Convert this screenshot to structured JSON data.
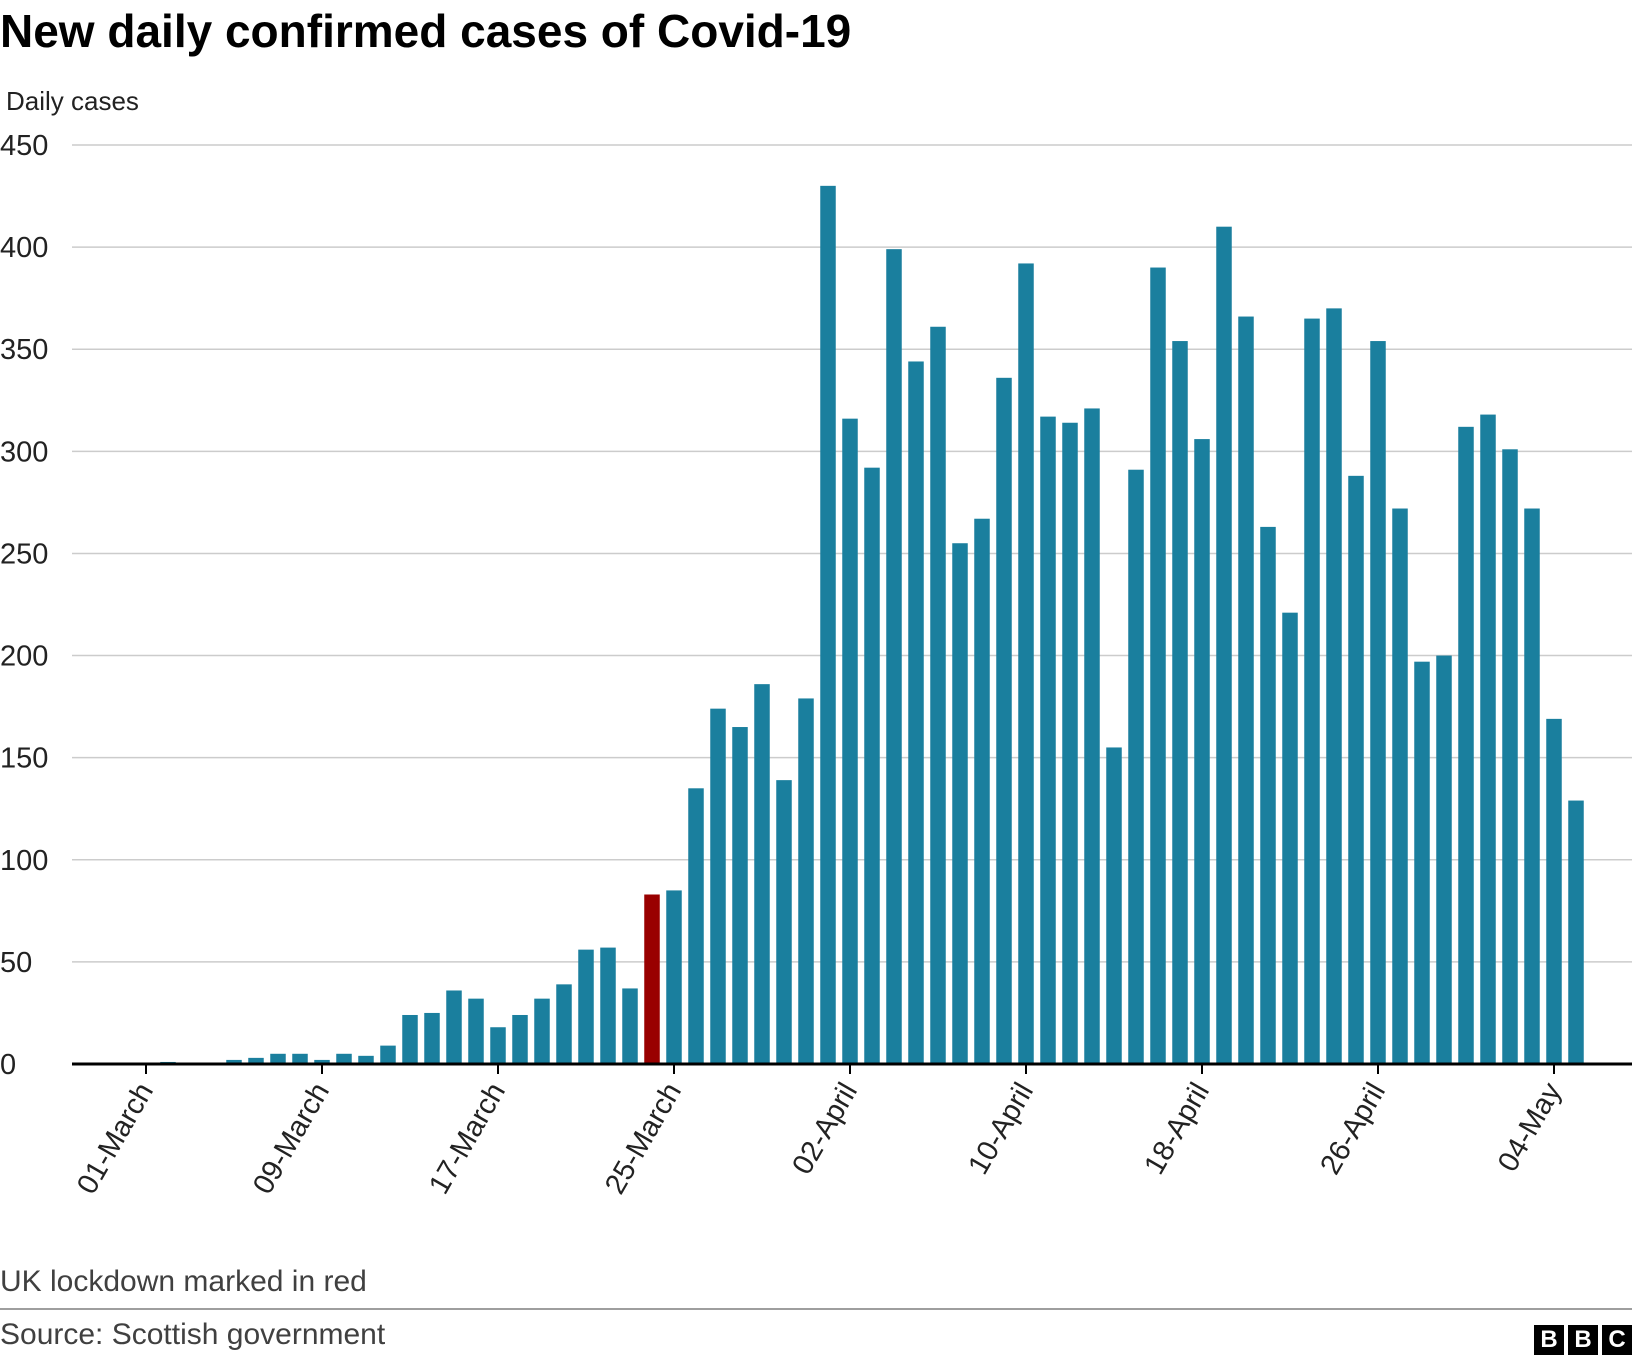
{
  "title": "New daily confirmed cases of Covid-19",
  "note": "UK lockdown marked in red",
  "source": "Source: Scottish government",
  "logo": {
    "letters": [
      "B",
      "B",
      "C"
    ]
  },
  "colors": {
    "bar": "#1a7f9e",
    "highlight": "#990000",
    "grid": "#cccccc",
    "axis": "#000000"
  },
  "chart_data": {
    "type": "bar",
    "title": "New daily confirmed cases of Covid-19",
    "ylabel": "Daily cases",
    "xlabel": "",
    "ylim": [
      0,
      450
    ],
    "yticks": [
      0,
      50,
      100,
      150,
      200,
      250,
      300,
      350,
      400,
      450
    ],
    "grid": true,
    "categories": [
      "01-March",
      "02-March",
      "03-March",
      "04-March",
      "05-March",
      "06-March",
      "07-March",
      "08-March",
      "09-March",
      "10-March",
      "11-March",
      "12-March",
      "13-March",
      "14-March",
      "15-March",
      "16-March",
      "17-March",
      "18-March",
      "19-March",
      "20-March",
      "21-March",
      "22-March",
      "23-March",
      "24-March",
      "25-March",
      "26-March",
      "27-March",
      "28-March",
      "29-March",
      "30-March",
      "31-March",
      "01-April",
      "02-April",
      "03-April",
      "04-April",
      "05-April",
      "06-April",
      "07-April",
      "08-April",
      "09-April",
      "10-April",
      "11-April",
      "12-April",
      "13-April",
      "14-April",
      "15-April",
      "16-April",
      "17-April",
      "18-April",
      "19-April",
      "20-April",
      "21-April",
      "22-April",
      "23-April",
      "24-April",
      "25-April",
      "26-April",
      "27-April",
      "28-April",
      "29-April",
      "30-April",
      "01-May",
      "02-May",
      "03-May",
      "04-May",
      "05-May"
    ],
    "values": [
      0,
      1,
      0,
      0,
      2,
      3,
      5,
      5,
      2,
      5,
      4,
      9,
      24,
      25,
      36,
      32,
      18,
      24,
      32,
      39,
      56,
      57,
      37,
      83,
      85,
      135,
      174,
      165,
      186,
      139,
      179,
      430,
      316,
      292,
      399,
      344,
      361,
      255,
      267,
      336,
      392,
      317,
      314,
      321,
      155,
      291,
      390,
      354,
      306,
      410,
      366,
      263,
      221,
      365,
      370,
      288,
      354,
      272,
      197,
      200,
      312,
      318,
      301,
      272,
      169,
      129
    ],
    "xtick_labels": [
      "01-March",
      "09-March",
      "17-March",
      "25-March",
      "02-April",
      "10-April",
      "18-April",
      "26-April",
      "04-May"
    ],
    "highlight": {
      "category": "24-March",
      "label": "UK lockdown marked in red"
    }
  }
}
